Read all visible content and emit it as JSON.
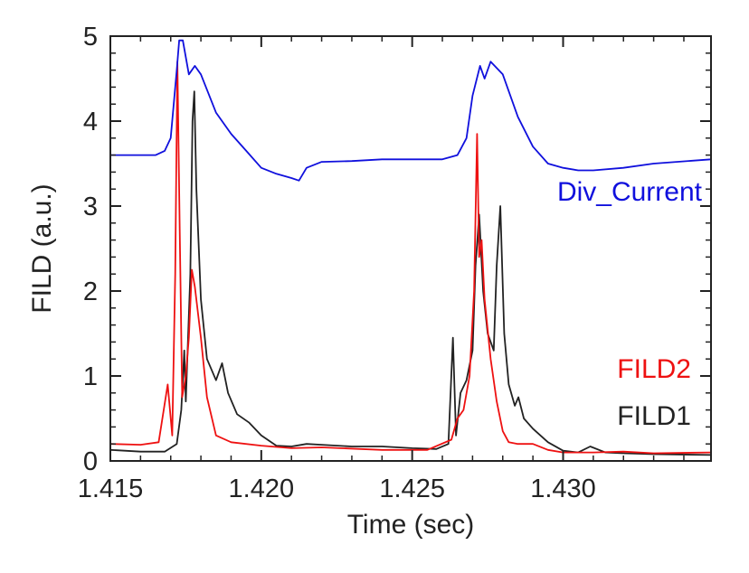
{
  "chart_data": {
    "type": "line",
    "title": "",
    "xlabel": "Time (sec)",
    "ylabel": "FILD (a.u.)",
    "xlim": [
      1.415,
      1.4349
    ],
    "ylim": [
      0,
      5
    ],
    "xticks": [
      1.415,
      1.42,
      1.425,
      1.43
    ],
    "xtick_labels": [
      "1.415",
      "1.420",
      "1.425",
      "1.430"
    ],
    "yticks": [
      0,
      1,
      2,
      3,
      4,
      5
    ],
    "ytick_labels": [
      "0",
      "1",
      "2",
      "3",
      "4",
      "5"
    ],
    "grid": false,
    "series": [
      {
        "name": "FILD1",
        "color": "#222222",
        "points": [
          [
            1.415,
            0.13
          ],
          [
            1.416,
            0.11
          ],
          [
            1.4168,
            0.11
          ],
          [
            1.4172,
            0.2
          ],
          [
            1.41735,
            0.6
          ],
          [
            1.41745,
            1.3
          ],
          [
            1.4175,
            0.7
          ],
          [
            1.41765,
            2.2
          ],
          [
            1.41772,
            4.0
          ],
          [
            1.41778,
            4.35
          ],
          [
            1.41785,
            3.2
          ],
          [
            1.418,
            1.9
          ],
          [
            1.4182,
            1.2
          ],
          [
            1.4185,
            0.95
          ],
          [
            1.4187,
            1.15
          ],
          [
            1.4189,
            0.8
          ],
          [
            1.4192,
            0.55
          ],
          [
            1.4196,
            0.45
          ],
          [
            1.42,
            0.3
          ],
          [
            1.4205,
            0.18
          ],
          [
            1.421,
            0.17
          ],
          [
            1.4215,
            0.2
          ],
          [
            1.422,
            0.19
          ],
          [
            1.423,
            0.17
          ],
          [
            1.424,
            0.17
          ],
          [
            1.425,
            0.15
          ],
          [
            1.4258,
            0.14
          ],
          [
            1.4262,
            0.2
          ],
          [
            1.42635,
            1.45
          ],
          [
            1.42645,
            0.3
          ],
          [
            1.4266,
            0.8
          ],
          [
            1.4268,
            0.95
          ],
          [
            1.427,
            1.3
          ],
          [
            1.4271,
            2.3
          ],
          [
            1.42722,
            2.9
          ],
          [
            1.42735,
            2.0
          ],
          [
            1.4275,
            1.5
          ],
          [
            1.4277,
            1.3
          ],
          [
            1.4278,
            2.3
          ],
          [
            1.42792,
            3.0
          ],
          [
            1.42805,
            1.5
          ],
          [
            1.4282,
            0.9
          ],
          [
            1.4284,
            0.65
          ],
          [
            1.42852,
            0.75
          ],
          [
            1.4287,
            0.5
          ],
          [
            1.429,
            0.38
          ],
          [
            1.4295,
            0.22
          ],
          [
            1.43,
            0.12
          ],
          [
            1.4305,
            0.1
          ],
          [
            1.4309,
            0.17
          ],
          [
            1.4314,
            0.1
          ],
          [
            1.432,
            0.09
          ],
          [
            1.433,
            0.08
          ],
          [
            1.4349,
            0.07
          ]
        ]
      },
      {
        "name": "FILD2",
        "color": "#ee1111",
        "points": [
          [
            1.415,
            0.2
          ],
          [
            1.416,
            0.19
          ],
          [
            1.4166,
            0.22
          ],
          [
            1.4169,
            0.9
          ],
          [
            1.41705,
            0.3
          ],
          [
            1.41715,
            2.2
          ],
          [
            1.41722,
            4.7
          ],
          [
            1.4173,
            2.7
          ],
          [
            1.41738,
            0.75
          ],
          [
            1.4175,
            1.0
          ],
          [
            1.4176,
            1.45
          ],
          [
            1.4177,
            2.25
          ],
          [
            1.4178,
            2.05
          ],
          [
            1.418,
            1.45
          ],
          [
            1.4182,
            0.75
          ],
          [
            1.4185,
            0.3
          ],
          [
            1.419,
            0.22
          ],
          [
            1.42,
            0.18
          ],
          [
            1.421,
            0.15
          ],
          [
            1.422,
            0.16
          ],
          [
            1.424,
            0.13
          ],
          [
            1.4255,
            0.13
          ],
          [
            1.4263,
            0.25
          ],
          [
            1.4265,
            0.5
          ],
          [
            1.4267,
            0.6
          ],
          [
            1.4269,
            1.0
          ],
          [
            1.42705,
            2.0
          ],
          [
            1.42715,
            3.85
          ],
          [
            1.42722,
            2.4
          ],
          [
            1.4273,
            2.6
          ],
          [
            1.4274,
            1.9
          ],
          [
            1.4276,
            1.2
          ],
          [
            1.4278,
            0.7
          ],
          [
            1.428,
            0.35
          ],
          [
            1.4282,
            0.22
          ],
          [
            1.4285,
            0.2
          ],
          [
            1.429,
            0.2
          ],
          [
            1.4295,
            0.13
          ],
          [
            1.43,
            0.1
          ],
          [
            1.431,
            0.1
          ],
          [
            1.432,
            0.11
          ],
          [
            1.433,
            0.09
          ],
          [
            1.4349,
            0.1
          ]
        ]
      },
      {
        "name": "Div_Current",
        "color": "#1010dd",
        "points": [
          [
            1.415,
            3.6
          ],
          [
            1.4165,
            3.6
          ],
          [
            1.4168,
            3.65
          ],
          [
            1.417,
            3.8
          ],
          [
            1.4172,
            4.6
          ],
          [
            1.41728,
            4.95
          ],
          [
            1.4174,
            4.95
          ],
          [
            1.4176,
            4.55
          ],
          [
            1.4178,
            4.65
          ],
          [
            1.418,
            4.55
          ],
          [
            1.4185,
            4.1
          ],
          [
            1.419,
            3.85
          ],
          [
            1.4195,
            3.65
          ],
          [
            1.42,
            3.45
          ],
          [
            1.4205,
            3.38
          ],
          [
            1.421,
            3.33
          ],
          [
            1.42125,
            3.3
          ],
          [
            1.4215,
            3.45
          ],
          [
            1.422,
            3.52
          ],
          [
            1.423,
            3.53
          ],
          [
            1.424,
            3.55
          ],
          [
            1.425,
            3.55
          ],
          [
            1.426,
            3.55
          ],
          [
            1.4265,
            3.6
          ],
          [
            1.4268,
            3.8
          ],
          [
            1.427,
            4.3
          ],
          [
            1.42725,
            4.65
          ],
          [
            1.4274,
            4.5
          ],
          [
            1.4276,
            4.7
          ],
          [
            1.428,
            4.55
          ],
          [
            1.4285,
            4.05
          ],
          [
            1.429,
            3.7
          ],
          [
            1.4295,
            3.5
          ],
          [
            1.43,
            3.45
          ],
          [
            1.4305,
            3.42
          ],
          [
            1.431,
            3.42
          ],
          [
            1.432,
            3.45
          ],
          [
            1.433,
            3.5
          ],
          [
            1.4349,
            3.55
          ]
        ]
      }
    ],
    "legend": {
      "placement": "annotations-right",
      "items": [
        {
          "label": "Div_Current",
          "color": "#1010dd"
        },
        {
          "label": "FILD2",
          "color": "#ee1111"
        },
        {
          "label": "FILD1",
          "color": "#222222"
        }
      ]
    }
  }
}
